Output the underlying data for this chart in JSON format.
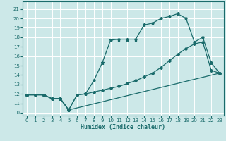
{
  "title": "",
  "xlabel": "Humidex (Indice chaleur)",
  "bg_color": "#cce8e8",
  "grid_color": "#ffffff",
  "line_color": "#1a6b6b",
  "xlim": [
    -0.5,
    23.5
  ],
  "ylim": [
    9.7,
    21.8
  ],
  "xticks": [
    0,
    1,
    2,
    3,
    4,
    5,
    6,
    7,
    8,
    9,
    10,
    11,
    12,
    13,
    14,
    15,
    16,
    17,
    18,
    19,
    20,
    21,
    22,
    23
  ],
  "yticks": [
    10,
    11,
    12,
    13,
    14,
    15,
    16,
    17,
    18,
    19,
    20,
    21
  ],
  "line1_x": [
    0,
    1,
    2,
    3,
    4,
    5,
    6,
    7,
    8,
    9,
    10,
    11,
    12,
    13,
    14,
    15,
    16,
    17,
    18,
    19,
    20,
    21,
    22,
    23
  ],
  "line1_y": [
    11.9,
    11.9,
    11.9,
    11.5,
    11.5,
    10.3,
    11.9,
    12.0,
    13.4,
    15.3,
    17.7,
    17.8,
    17.8,
    17.8,
    19.3,
    19.5,
    20.0,
    20.2,
    20.5,
    20.0,
    17.5,
    18.0,
    15.3,
    14.2
  ],
  "line2_x": [
    0,
    1,
    2,
    3,
    4,
    5,
    6,
    7,
    8,
    9,
    10,
    11,
    12,
    13,
    14,
    15,
    16,
    17,
    18,
    19,
    20,
    21,
    22,
    23
  ],
  "line2_y": [
    11.9,
    11.9,
    11.9,
    11.5,
    11.5,
    10.3,
    11.9,
    12.0,
    12.2,
    12.4,
    12.6,
    12.8,
    13.1,
    13.4,
    13.8,
    14.2,
    14.8,
    15.5,
    16.2,
    16.8,
    17.3,
    17.5,
    14.5,
    14.2
  ],
  "line3_x": [
    0,
    2,
    3,
    4,
    5,
    23
  ],
  "line3_y": [
    11.9,
    11.9,
    11.5,
    11.5,
    10.3,
    14.2
  ]
}
